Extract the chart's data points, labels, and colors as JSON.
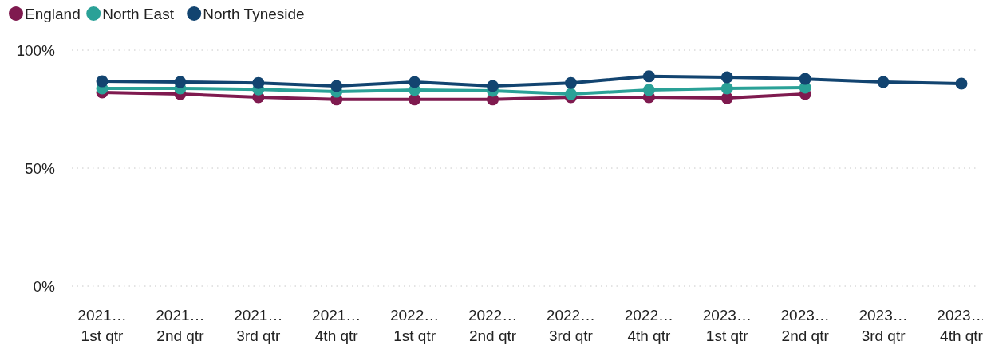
{
  "chart_data": {
    "type": "line",
    "categories": [
      "2021… 1st qtr",
      "2021… 2nd qtr",
      "2021… 3rd qtr",
      "2021… 4th qtr",
      "2022… 1st qtr",
      "2022… 2nd qtr",
      "2022… 3rd qtr",
      "2022… 4th qtr",
      "2023… 1st qtr",
      "2023… 2nd qtr",
      "2023… 3rd qtr",
      "2023… 4th qtr"
    ],
    "series": [
      {
        "name": "England",
        "color": "#7f1a4f",
        "values": [
          82.1,
          81.4,
          80.1,
          79.1,
          79.1,
          79.1,
          80.1,
          80.1,
          79.7,
          81.4,
          null,
          null
        ]
      },
      {
        "name": "North East",
        "color": "#2aa197",
        "values": [
          83.8,
          83.8,
          83.4,
          82.4,
          83.1,
          82.8,
          81.4,
          83.1,
          83.8,
          84.1,
          null,
          null
        ]
      },
      {
        "name": "North Tyneside",
        "color": "#124470",
        "values": [
          86.8,
          86.5,
          86.1,
          84.8,
          86.5,
          84.8,
          86.1,
          88.9,
          88.5,
          87.8,
          86.5,
          85.8
        ]
      }
    ],
    "ylim": [
      0,
      100
    ],
    "yticks": [
      {
        "value": 0,
        "label": "0%"
      },
      {
        "value": 50,
        "label": "50%"
      },
      {
        "value": 100,
        "label": "100%"
      }
    ],
    "grid": "y",
    "legend": "top left",
    "marker": "circle",
    "line_style": "solid"
  }
}
